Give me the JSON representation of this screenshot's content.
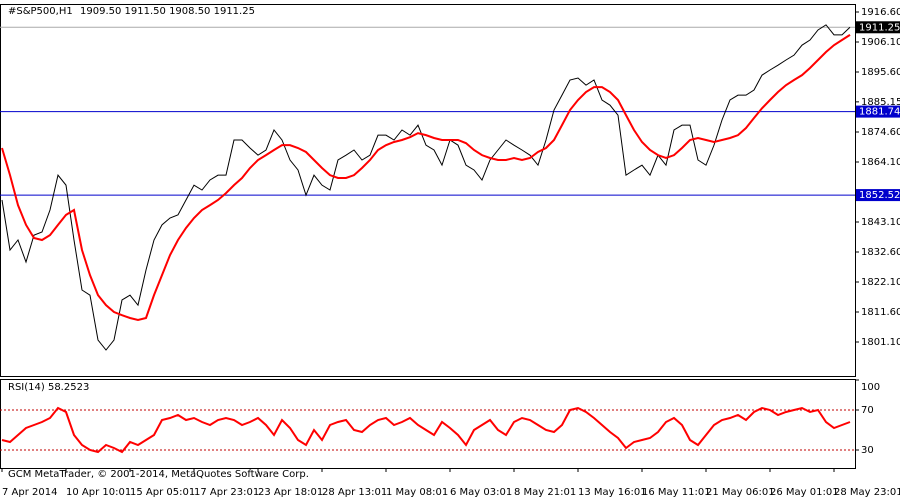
{
  "chart_data": [
    {
      "type": "line",
      "title": "#S&P500,H1",
      "subtitle": "1909.50 1911.50 1908.50 1911.25",
      "categories": [
        "7 Apr 2014",
        null,
        null,
        null,
        null,
        null,
        null,
        null,
        "10 Apr 10:01",
        null,
        null,
        null,
        null,
        null,
        null,
        null,
        "15 Apr 05:01",
        null,
        null,
        null,
        null,
        null,
        null,
        null,
        "17 Apr 23:01",
        null,
        null,
        null,
        null,
        null,
        null,
        null,
        "23 Apr 18:01",
        null,
        null,
        null,
        null,
        null,
        null,
        null,
        "28 Apr 13:01",
        null,
        null,
        null,
        null,
        null,
        null,
        null,
        "1 May 08:01",
        null,
        null,
        null,
        null,
        null,
        null,
        null,
        "6 May 03:01",
        null,
        null,
        null,
        null,
        null,
        null,
        null,
        "8 May 21:01",
        null,
        null,
        null,
        null,
        null,
        null,
        null,
        "13 May 16:01",
        null,
        null,
        null,
        null,
        null,
        null,
        null,
        "16 May 11:01",
        null,
        null,
        null,
        null,
        null,
        null,
        null,
        "21 May 06:01",
        null,
        null,
        null,
        null,
        null,
        null,
        null,
        "26 May 01:01",
        null,
        null,
        null,
        null,
        null,
        null,
        null,
        "28 May 23:01",
        null,
        null
      ],
      "series": [
        {
          "color": "#000000",
          "values": [
            1850.8,
            1833.3,
            1836.8,
            1829.1,
            1838.5,
            1839.6,
            1847.3,
            1859.5,
            1856.0,
            1836.8,
            1819.3,
            1817.5,
            1801.8,
            1798.3,
            1801.8,
            1815.8,
            1817.5,
            1814.0,
            1826.3,
            1836.8,
            1842.1,
            1844.5,
            1845.6,
            1850.8,
            1856.0,
            1854.3,
            1857.8,
            1859.5,
            1859.5,
            1871.8,
            1871.8,
            1869.0,
            1866.5,
            1868.3,
            1875.3,
            1871.8,
            1864.8,
            1861.3,
            1852.5,
            1859.5,
            1856.0,
            1854.3,
            1864.8,
            1866.5,
            1868.3,
            1864.8,
            1866.5,
            1873.5,
            1873.5,
            1871.8,
            1875.3,
            1873.5,
            1877.0,
            1870.0,
            1868.3,
            1863.0,
            1871.8,
            1870.0,
            1863.0,
            1861.3,
            1857.8,
            1864.8,
            1868.3,
            1871.8,
            1870.0,
            1868.3,
            1866.5,
            1863.0,
            1871.8,
            1882.3,
            1887.5,
            1892.8,
            1893.5,
            1891.0,
            1892.8,
            1885.8,
            1884.0,
            1880.5,
            1859.5,
            1861.3,
            1863.0,
            1859.5,
            1866.5,
            1863.0,
            1875.3,
            1877.0,
            1877.0,
            1864.8,
            1863.0,
            1870.0,
            1878.8,
            1885.8,
            1887.5,
            1887.5,
            1889.3,
            1894.5,
            1896.3,
            1898.0,
            1899.8,
            1901.5,
            1905.0,
            1906.8,
            1910.3,
            1912.1,
            1908.6,
            1908.6,
            1911.25
          ]
        },
        {
          "color": "#ff0000",
          "values": [
            1869.0,
            1859.5,
            1849.0,
            1842.1,
            1837.5,
            1836.8,
            1838.5,
            1842.1,
            1845.6,
            1847.3,
            1833.3,
            1824.5,
            1817.5,
            1814.0,
            1811.6,
            1810.5,
            1809.5,
            1808.8,
            1809.5,
            1817.5,
            1824.5,
            1831.5,
            1836.8,
            1841.0,
            1844.5,
            1847.3,
            1849.0,
            1850.8,
            1853.2,
            1856.0,
            1858.5,
            1862.0,
            1864.8,
            1866.5,
            1868.3,
            1870.0,
            1870.0,
            1869.0,
            1867.6,
            1864.8,
            1862.0,
            1859.5,
            1858.5,
            1858.5,
            1859.5,
            1862.0,
            1864.8,
            1868.3,
            1870.0,
            1871.1,
            1871.8,
            1872.8,
            1874.2,
            1873.5,
            1872.5,
            1871.8,
            1871.8,
            1871.8,
            1870.7,
            1868.3,
            1866.5,
            1865.5,
            1864.8,
            1864.8,
            1865.5,
            1864.8,
            1865.5,
            1867.6,
            1869.0,
            1871.8,
            1877.0,
            1882.3,
            1885.8,
            1888.6,
            1890.3,
            1890.3,
            1888.6,
            1885.8,
            1880.5,
            1875.3,
            1871.1,
            1868.3,
            1866.5,
            1865.5,
            1866.5,
            1869.0,
            1871.8,
            1872.5,
            1871.8,
            1871.1,
            1871.8,
            1872.5,
            1873.5,
            1876.0,
            1879.5,
            1882.9,
            1885.8,
            1888.6,
            1891.0,
            1892.8,
            1894.5,
            1897.0,
            1899.8,
            1902.6,
            1905.0,
            1906.8,
            1908.6
          ]
        }
      ],
      "ylim": [
        1788.85,
        1919.05
      ],
      "yticks": [
        {
          "value": 1916.6,
          "label": "1916.60"
        },
        {
          "value": 1906.1,
          "label": "1906.10"
        },
        {
          "value": 1895.6,
          "label": "1895.60"
        },
        1885.15,
        {
          "value": 1874.6,
          "label": "1874.60"
        },
        {
          "value": 1864.1,
          "label": "1864.10"
        },
        {
          "value": 1843.1,
          "label": "1843.10"
        },
        {
          "value": 1832.6,
          "label": "1832.60"
        },
        {
          "value": 1822.1,
          "label": "1822.10"
        },
        {
          "value": 1811.6,
          "label": "1811.60"
        },
        {
          "value": 1801.1,
          "label": "1801.10"
        }
      ],
      "levels": [
        1881.74,
        1852.52
      ],
      "level_color": "#0000cc",
      "price_label": 1911.25
    },
    {
      "type": "line",
      "title": "RSI(14) 58.2523",
      "color": "#ff0000",
      "values": [
        40,
        38,
        45,
        52,
        55,
        58,
        62,
        72,
        68,
        45,
        35,
        30,
        28,
        35,
        32,
        28,
        38,
        35,
        40,
        45,
        60,
        62,
        65,
        60,
        62,
        58,
        55,
        60,
        62,
        60,
        55,
        58,
        62,
        55,
        45,
        60,
        52,
        40,
        35,
        50,
        40,
        55,
        58,
        60,
        50,
        48,
        55,
        60,
        62,
        55,
        58,
        62,
        55,
        50,
        45,
        58,
        52,
        45,
        35,
        50,
        55,
        60,
        50,
        45,
        58,
        62,
        60,
        55,
        50,
        48,
        55,
        70,
        72,
        68,
        62,
        55,
        48,
        42,
        32,
        38,
        40,
        42,
        48,
        58,
        62,
        55,
        40,
        35,
        45,
        55,
        60,
        62,
        65,
        60,
        68,
        72,
        70,
        65,
        68,
        70,
        72,
        68,
        70,
        58,
        52,
        55,
        58
      ],
      "ylim": [
        12,
        100
      ],
      "yticks": [
        100,
        70,
        30
      ],
      "levels": [
        70,
        30
      ]
    }
  ],
  "footer": "GCM MetaTrader, © 2001-2014, MetaQuotes Software Corp."
}
